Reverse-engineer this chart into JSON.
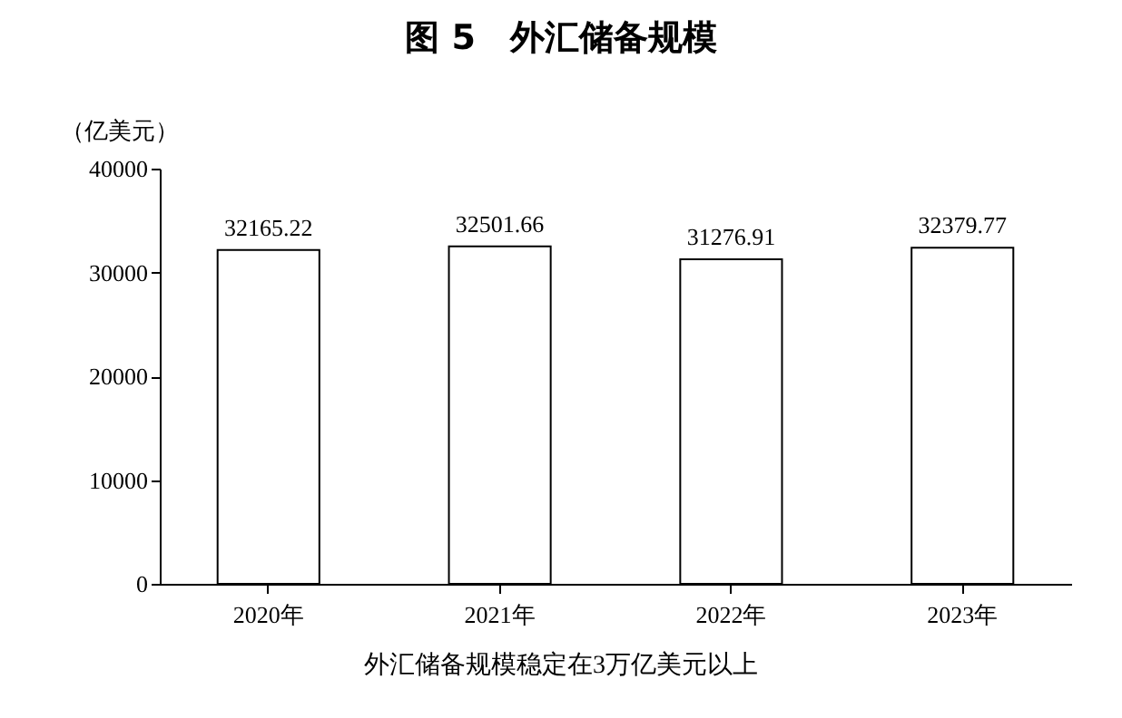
{
  "chart_data": {
    "type": "bar",
    "title": "图 5　外汇储备规模",
    "ylabel": "（亿美元）",
    "annotations": [
      "外汇储备规模稳定在3万亿美元以上"
    ],
    "categories": [
      "2020年",
      "2021年",
      "2022年",
      "2023年"
    ],
    "values": [
      32165.22,
      32501.66,
      31276.91,
      32379.77
    ],
    "color": "#ffffff",
    "ylim": [
      0,
      40000
    ],
    "yticks": [
      0,
      10000,
      20000,
      30000,
      40000
    ],
    "grid": false,
    "data_labels": true
  }
}
